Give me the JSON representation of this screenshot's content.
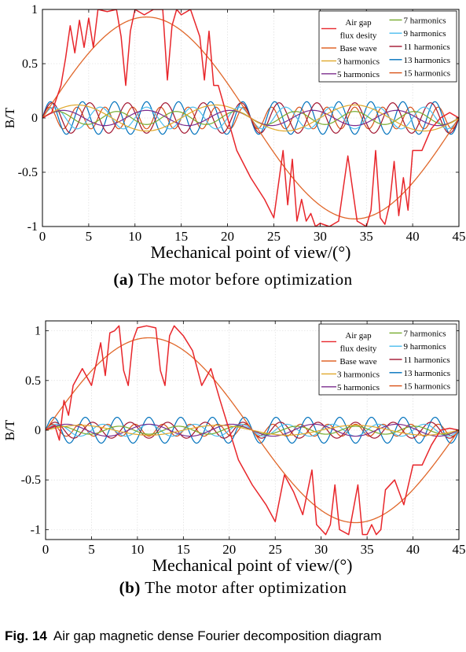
{
  "figure": {
    "number": "Fig. 14",
    "caption": "Air gap magnetic dense Fourier decomposition diagram"
  },
  "chart_data": [
    {
      "type": "line",
      "panel_label": "(a)",
      "subtitle": "The motor before optimization",
      "xlabel": "Mechanical point of view/(°)",
      "ylabel": "B/T",
      "xlim": [
        0,
        45
      ],
      "ylim": [
        -1,
        1
      ],
      "x_ticks": [
        0,
        5,
        10,
        15,
        20,
        25,
        30,
        35,
        40,
        45
      ],
      "y_ticks": [
        -1,
        -0.5,
        0,
        0.5,
        1
      ],
      "y_tick_labels": [
        "-1",
        "-0.5",
        "0",
        "0.5",
        "1"
      ],
      "grid": true,
      "legend_position": "top-right",
      "period_deg": 45,
      "series": [
        {
          "name": "Air gap flux desity",
          "color": "#e8262b",
          "legend_lines": [
            "Air gap",
            "flux desity"
          ],
          "x": [
            0,
            1,
            2,
            2.5,
            3,
            3.5,
            4,
            4.5,
            5,
            5.5,
            6,
            7,
            8,
            8.5,
            9,
            9.5,
            10,
            11,
            12,
            13,
            13.5,
            14,
            14.5,
            15,
            16,
            17,
            17.5,
            18,
            18.5,
            19,
            20,
            21,
            22.5,
            24,
            25,
            26,
            26.5,
            27,
            27.5,
            28,
            28.5,
            29,
            29.5,
            30,
            31,
            32,
            33,
            34,
            35,
            35.5,
            36,
            36.5,
            37,
            37.5,
            38,
            38.5,
            39,
            39.5,
            40,
            41,
            42,
            43,
            44,
            45
          ],
          "y": [
            0,
            0.05,
            0.3,
            0.55,
            0.85,
            0.6,
            0.9,
            0.65,
            0.92,
            0.65,
            1.0,
            0.98,
            1.0,
            0.75,
            0.3,
            0.8,
            1.0,
            0.95,
            1.0,
            1.0,
            0.35,
            0.85,
            1.0,
            0.95,
            1.0,
            0.75,
            0.35,
            0.8,
            0.3,
            0.3,
            0.0,
            -0.3,
            -0.55,
            -0.75,
            -0.92,
            -0.3,
            -0.8,
            -0.38,
            -0.95,
            -0.75,
            -0.95,
            -0.88,
            -1.0,
            -0.97,
            -1.0,
            -0.95,
            -0.35,
            -0.95,
            -1.0,
            -0.85,
            -0.3,
            -0.92,
            -0.98,
            -0.8,
            -0.4,
            -0.9,
            -0.55,
            -0.85,
            -0.3,
            -0.3,
            -0.1,
            0.0,
            0.05,
            0.0
          ]
        },
        {
          "name": "Base wave",
          "color": "#e0672a",
          "harmonic": 1,
          "amplitude": 0.93
        },
        {
          "name": "3 harmonics",
          "color": "#e0a82a",
          "harmonic": 3,
          "amplitude": 0.12
        },
        {
          "name": "5 harmonics",
          "color": "#7b2d8e",
          "harmonic": 5,
          "amplitude": 0.07
        },
        {
          "name": "7 harmonics",
          "color": "#77ac30",
          "harmonic": 7,
          "amplitude": 0.06
        },
        {
          "name": "9 harmonics",
          "color": "#4dbeee",
          "harmonic": 9,
          "amplitude": 0.1
        },
        {
          "name": "11 harmonics",
          "color": "#a2142f",
          "harmonic": 11,
          "amplitude": 0.14
        },
        {
          "name": "13 harmonics",
          "color": "#0072bd",
          "harmonic": 13,
          "amplitude": 0.15
        },
        {
          "name": "15 harmonics",
          "color": "#d95319",
          "harmonic": 15,
          "amplitude": 0.1
        }
      ]
    },
    {
      "type": "line",
      "panel_label": "(b)",
      "subtitle": "The motor after optimization",
      "xlabel": "Mechanical point of view/(°)",
      "ylabel": "B/T",
      "xlim": [
        0,
        45
      ],
      "ylim": [
        -1.1,
        1.1
      ],
      "x_ticks": [
        0,
        5,
        10,
        15,
        20,
        25,
        30,
        35,
        40,
        45
      ],
      "y_ticks": [
        -1,
        -0.5,
        0,
        0.5,
        1
      ],
      "y_tick_labels": [
        "-1",
        "-0.5",
        "0",
        "0.5",
        "1"
      ],
      "grid": true,
      "legend_position": "top-right",
      "period_deg": 45,
      "series": [
        {
          "name": "Air gap flux desity",
          "color": "#e8262b",
          "legend_lines": [
            "Air gap",
            "flux desity"
          ],
          "x": [
            0,
            1,
            1.5,
            2,
            2.5,
            3,
            4,
            5,
            6,
            6.5,
            7,
            7.5,
            8,
            8.5,
            9,
            9.5,
            10,
            11,
            12,
            12.5,
            13,
            13.5,
            14,
            14.5,
            15,
            16,
            17,
            18,
            19,
            20,
            21,
            22.5,
            24,
            25,
            26,
            27,
            28,
            29,
            29.5,
            30,
            30.5,
            31,
            31.5,
            32,
            33,
            34,
            34.5,
            35,
            35.5,
            36,
            36.5,
            37,
            38,
            39,
            40,
            41,
            42,
            43,
            44,
            45
          ],
          "y": [
            0,
            0.05,
            -0.1,
            0.3,
            0.15,
            0.45,
            0.62,
            0.45,
            0.88,
            0.55,
            0.98,
            1.0,
            1.05,
            0.6,
            0.45,
            0.9,
            1.03,
            1.05,
            1.03,
            0.6,
            0.45,
            0.95,
            1.05,
            1.0,
            0.95,
            0.8,
            0.45,
            0.62,
            0.3,
            0.0,
            -0.3,
            -0.55,
            -0.75,
            -0.92,
            -0.45,
            -0.62,
            -0.85,
            -0.4,
            -0.95,
            -1.0,
            -1.05,
            -0.95,
            -0.55,
            -1.0,
            -1.05,
            -0.55,
            -1.05,
            -1.05,
            -0.95,
            -1.05,
            -1.0,
            -0.6,
            -0.5,
            -0.75,
            -0.35,
            -0.35,
            -0.15,
            0.0,
            0.02,
            0.0
          ]
        },
        {
          "name": "Base wave",
          "color": "#e0672a",
          "harmonic": 1,
          "amplitude": 0.93
        },
        {
          "name": "3 harmonics",
          "color": "#e0a82a",
          "harmonic": 3,
          "amplitude": 0.05
        },
        {
          "name": "5 harmonics",
          "color": "#7b2d8e",
          "harmonic": 5,
          "amplitude": 0.06
        },
        {
          "name": "7 harmonics",
          "color": "#77ac30",
          "harmonic": 7,
          "amplitude": 0.04
        },
        {
          "name": "9 harmonics",
          "color": "#4dbeee",
          "harmonic": 9,
          "amplitude": 0.06
        },
        {
          "name": "11 harmonics",
          "color": "#a2142f",
          "harmonic": 11,
          "amplitude": 0.08
        },
        {
          "name": "13 harmonics",
          "color": "#0072bd",
          "harmonic": 13,
          "amplitude": 0.13
        },
        {
          "name": "15 harmonics",
          "color": "#d95319",
          "harmonic": 15,
          "amplitude": 0.06
        }
      ]
    }
  ]
}
